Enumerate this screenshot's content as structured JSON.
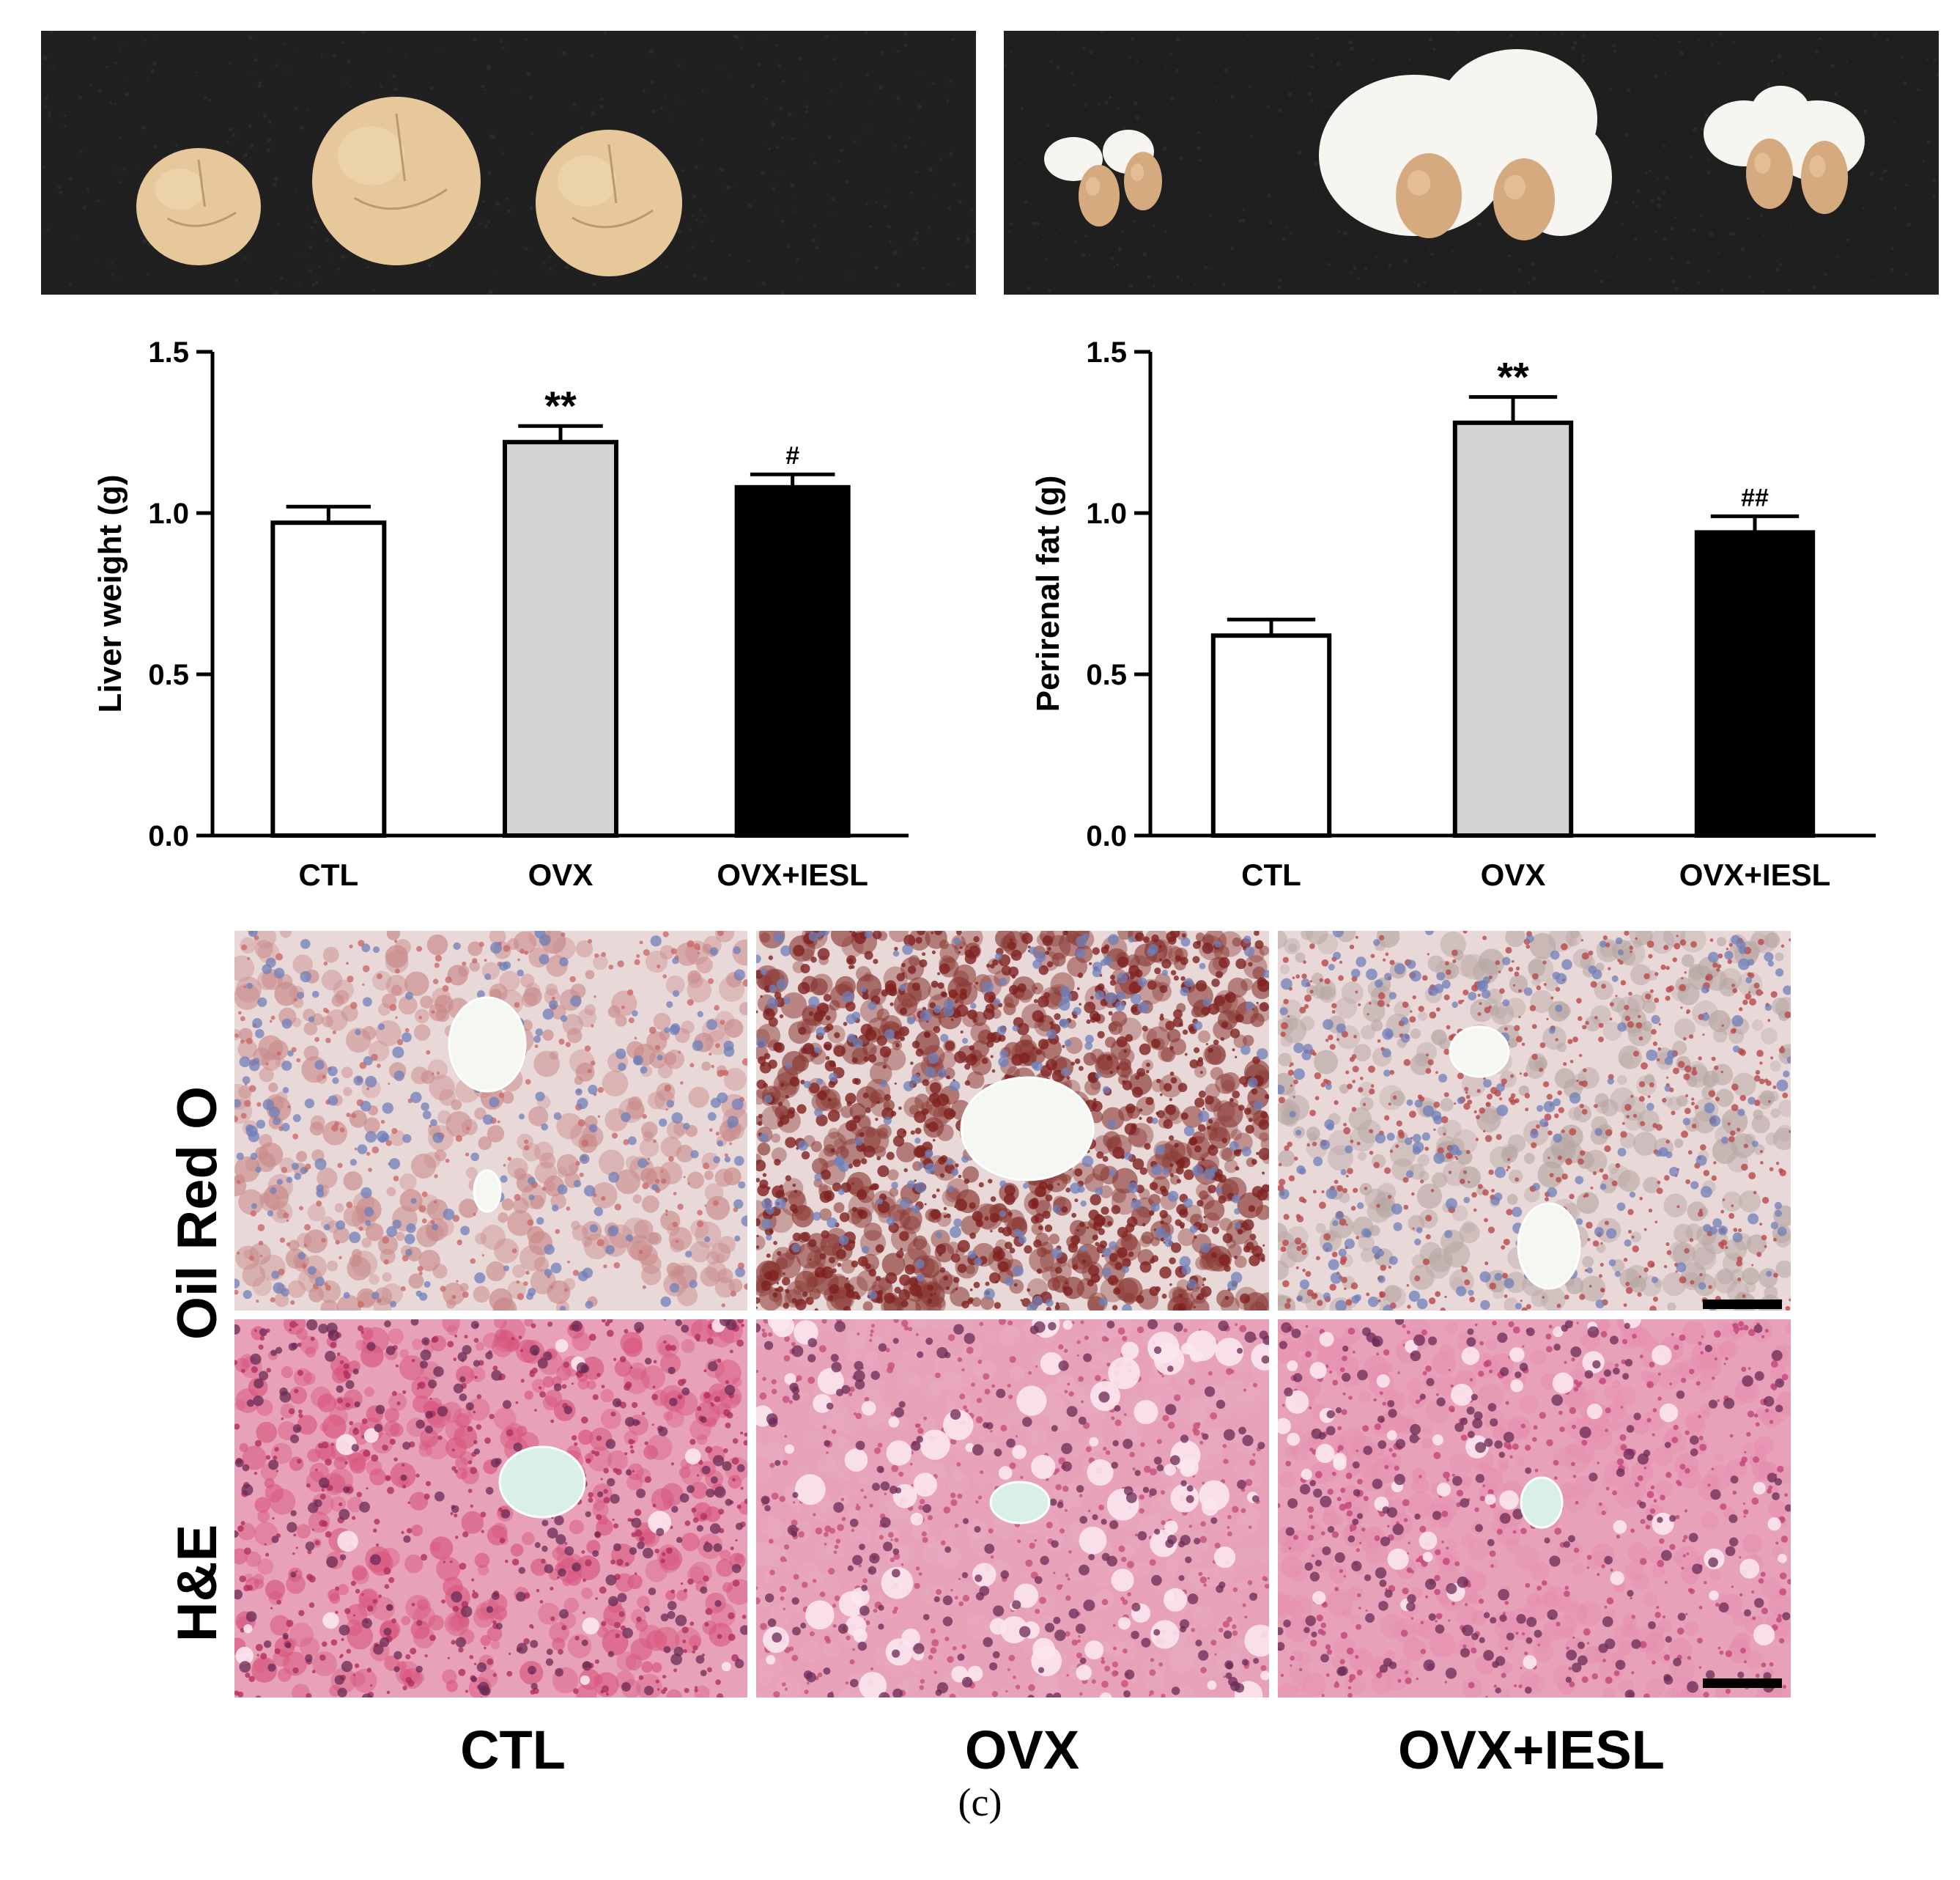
{
  "photos": {
    "liver": {
      "background": "#202020",
      "organ_color": "#e6c89b"
    },
    "perirenal": {
      "background": "#1f1f1f",
      "fat_color": "#f6f5f0",
      "kidney_color": "#d6aa7f"
    }
  },
  "chart_data": [
    {
      "type": "bar",
      "categories": [
        "CTL",
        "OVX",
        "OVX+IESL"
      ],
      "values": [
        0.97,
        1.22,
        1.08
      ],
      "errors": [
        0.05,
        0.05,
        0.04
      ],
      "annotations": [
        "",
        "**",
        "#"
      ],
      "colors": [
        "#ffffff",
        "#d3d3d3",
        "#000000"
      ],
      "ylabel": "Liver weight (g)",
      "ylim": [
        0,
        1.5
      ],
      "yticks": [
        "0.0",
        "0.5",
        "1.0",
        "1.5"
      ],
      "ytick_values": [
        0,
        0.5,
        1.0,
        1.5
      ]
    },
    {
      "type": "bar",
      "categories": [
        "CTL",
        "OVX",
        "OVX+IESL"
      ],
      "values": [
        0.62,
        1.28,
        0.94
      ],
      "errors": [
        0.05,
        0.08,
        0.05
      ],
      "annotations": [
        "",
        "**",
        "##"
      ],
      "colors": [
        "#ffffff",
        "#d3d3d3",
        "#000000"
      ],
      "ylabel": "Perirenal fat (g)",
      "ylim": [
        0,
        1.5
      ],
      "yticks": [
        "0.0",
        "0.5",
        "1.0",
        "1.5"
      ],
      "ytick_values": [
        0,
        0.5,
        1.0,
        1.5
      ]
    }
  ],
  "histology": {
    "rows": [
      {
        "label": "Oil Red O",
        "base": "#e9d8d8",
        "tints": [
          "#c98a8a",
          "#8b3b36",
          "#b7a7a4"
        ],
        "dots": [
          "#c96a6a",
          "#7e2220",
          "#b8484a"
        ],
        "nuclei": "#6f7fb8"
      },
      {
        "label": "H&E",
        "base": "#e7a2b9",
        "tints": [
          "#d8577f",
          "#e8a9c0",
          "#e690b0"
        ],
        "dots": [
          "#b0305e",
          "#c6507a",
          "#c2467a"
        ],
        "nuclei": "#6a2a54"
      }
    ],
    "columns": [
      "CTL",
      "OVX",
      "OVX+IESL"
    ]
  },
  "caption": "(c)"
}
